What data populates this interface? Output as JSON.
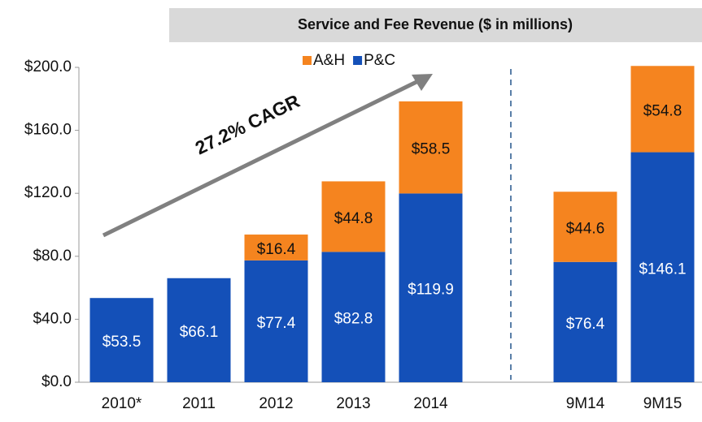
{
  "chart_data": {
    "type": "stacked_bar",
    "title": "Service and Fee Revenue ($ in millions)",
    "annotation": "27.2% CAGR",
    "categories": [
      "2010*",
      "2011",
      "2012",
      "2013",
      "2014",
      null,
      "9M14",
      "9M15"
    ],
    "series": [
      {
        "name": "P&C",
        "color": "#1450b8",
        "values": [
          53.5,
          66.1,
          77.4,
          82.8,
          119.9,
          null,
          76.4,
          146.1
        ],
        "value_labels": [
          "$53.5",
          "$66.1",
          "$77.4",
          "$82.8",
          "$119.9",
          null,
          "$76.4",
          "$146.1"
        ]
      },
      {
        "name": "A&H",
        "color": "#f5841f",
        "values": [
          null,
          null,
          16.4,
          44.8,
          58.5,
          null,
          44.6,
          54.8
        ],
        "value_labels": [
          null,
          null,
          "$16.4",
          "$44.8",
          "$58.5",
          null,
          "$44.6",
          "$54.8"
        ]
      }
    ],
    "ylim": [
      0,
      200
    ],
    "yticks": [
      {
        "value": 0,
        "label": "$0.0"
      },
      {
        "value": 40,
        "label": "$40.0"
      },
      {
        "value": 80,
        "label": "$80.0"
      },
      {
        "value": 120,
        "label": "$120.0"
      },
      {
        "value": 160,
        "label": "$160.0"
      },
      {
        "value": 200,
        "label": "$200.0"
      }
    ],
    "legend": "top"
  }
}
